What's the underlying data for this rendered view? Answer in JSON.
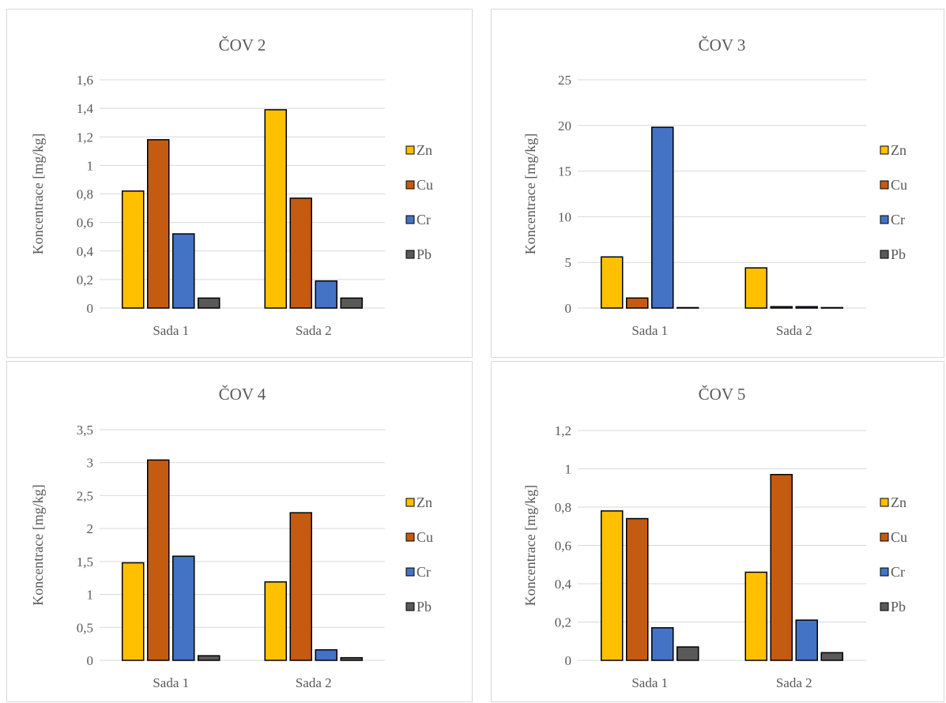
{
  "colors": {
    "Zn": "#FFC000",
    "Cu": "#C55A11",
    "Cr": "#4472C4",
    "Pb": "#595959"
  },
  "chart_data": [
    {
      "type": "bar",
      "title": "ČOV 2",
      "ylabel": "Koncentrace [mg/kg]",
      "categories": [
        "Sada 1",
        "Sada 2"
      ],
      "ylim": [
        0,
        1.6
      ],
      "yticks": [
        "0",
        "0,2",
        "0,4",
        "0,6",
        "0,8",
        "1",
        "1,2",
        "1,4",
        "1,6"
      ],
      "grid": true,
      "legend": "right",
      "series": [
        {
          "name": "Zn",
          "values": [
            0.82,
            1.39
          ]
        },
        {
          "name": "Cu",
          "values": [
            1.18,
            0.77
          ]
        },
        {
          "name": "Cr",
          "values": [
            0.52,
            0.19
          ]
        },
        {
          "name": "Pb",
          "values": [
            0.07,
            0.07
          ]
        }
      ]
    },
    {
      "type": "bar",
      "title": "ČOV 3",
      "ylabel": "Koncentrace [mg/kg]",
      "categories": [
        "Sada 1",
        "Sada 2"
      ],
      "ylim": [
        0,
        25
      ],
      "yticks": [
        "0",
        "5",
        "10",
        "15",
        "20",
        "25"
      ],
      "grid": true,
      "legend": "right",
      "series": [
        {
          "name": "Zn",
          "values": [
            5.6,
            4.4
          ]
        },
        {
          "name": "Cu",
          "values": [
            1.1,
            0.15
          ]
        },
        {
          "name": "Cr",
          "values": [
            19.8,
            0.15
          ]
        },
        {
          "name": "Pb",
          "values": [
            0.05,
            0.05
          ]
        }
      ]
    },
    {
      "type": "bar",
      "title": "ČOV 4",
      "ylabel": "Koncentrace  [mg/kg]",
      "categories": [
        "Sada 1",
        "Sada 2"
      ],
      "ylim": [
        0,
        3.5
      ],
      "yticks": [
        "0",
        "0,5",
        "1",
        "1,5",
        "2",
        "2,5",
        "3",
        "3,5"
      ],
      "grid": true,
      "legend": "right",
      "series": [
        {
          "name": "Zn",
          "values": [
            1.48,
            1.19
          ]
        },
        {
          "name": "Cu",
          "values": [
            3.04,
            2.24
          ]
        },
        {
          "name": "Cr",
          "values": [
            1.58,
            0.16
          ]
        },
        {
          "name": "Pb",
          "values": [
            0.07,
            0.04
          ]
        }
      ]
    },
    {
      "type": "bar",
      "title": "ČOV 5",
      "ylabel": "Koncentrace [mg/kg]",
      "categories": [
        "Sada 1",
        "Sada 2"
      ],
      "ylim": [
        0,
        1.2
      ],
      "yticks": [
        "0",
        "0,2",
        "0,4",
        "0,6",
        "0,8",
        "1",
        "1,2"
      ],
      "grid": true,
      "legend": "right",
      "series": [
        {
          "name": "Zn",
          "values": [
            0.78,
            0.46
          ]
        },
        {
          "name": "Cu",
          "values": [
            0.74,
            0.97
          ]
        },
        {
          "name": "Cr",
          "values": [
            0.17,
            0.21
          ]
        },
        {
          "name": "Pb",
          "values": [
            0.07,
            0.04
          ]
        }
      ]
    }
  ]
}
